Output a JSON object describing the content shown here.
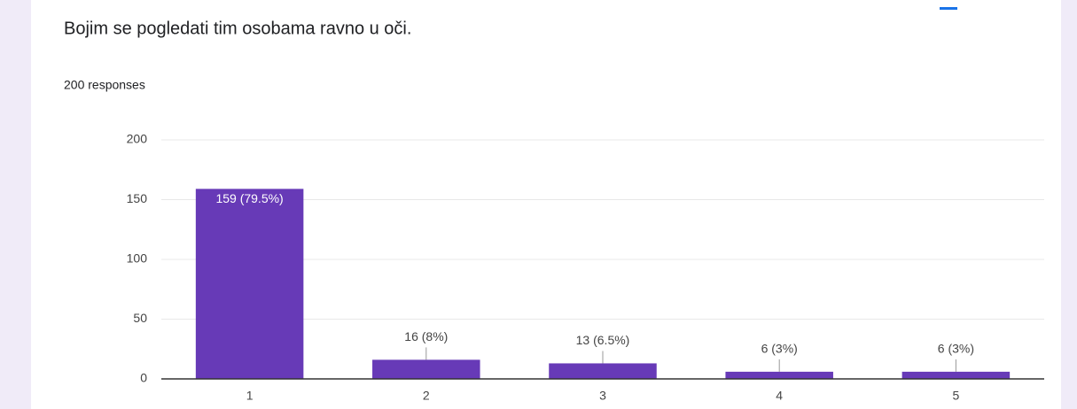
{
  "chart_data": {
    "type": "bar",
    "title": "Bojim se pogledati tim osobama ravno u oči.",
    "subtitle": "200 responses",
    "categories": [
      "1",
      "2",
      "3",
      "4",
      "5"
    ],
    "values": [
      159,
      16,
      13,
      6,
      6
    ],
    "value_labels": [
      "159 (79.5%)",
      "16 (8%)",
      "13 (6.5%)",
      "6 (3%)",
      "6 (3%)"
    ],
    "color": "#673ab7",
    "ylim": [
      0,
      200
    ],
    "yticks": [
      0,
      50,
      100,
      150,
      200
    ],
    "grid": true
  }
}
